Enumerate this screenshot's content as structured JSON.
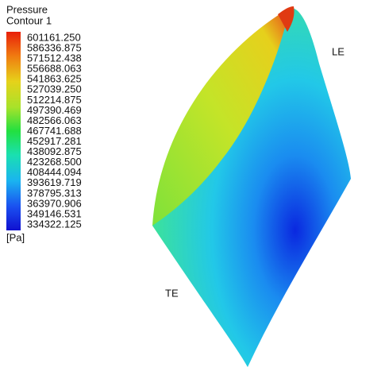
{
  "legend": {
    "title": "Pressure",
    "subtitle": "Contour 1",
    "labels": [
      "601161.250",
      "586336.875",
      "571512.438",
      "556688.063",
      "541863.625",
      "527039.250",
      "512214.875",
      "497390.469",
      "482566.063",
      "467741.688",
      "452917.281",
      "438092.875",
      "423268.500",
      "408444.094",
      "393619.719",
      "378795.313",
      "363970.906",
      "349146.531",
      "334322.125"
    ],
    "unit": "[Pa]"
  },
  "annotations": {
    "leading_edge": "LE",
    "trailing_edge": "TE"
  }
}
